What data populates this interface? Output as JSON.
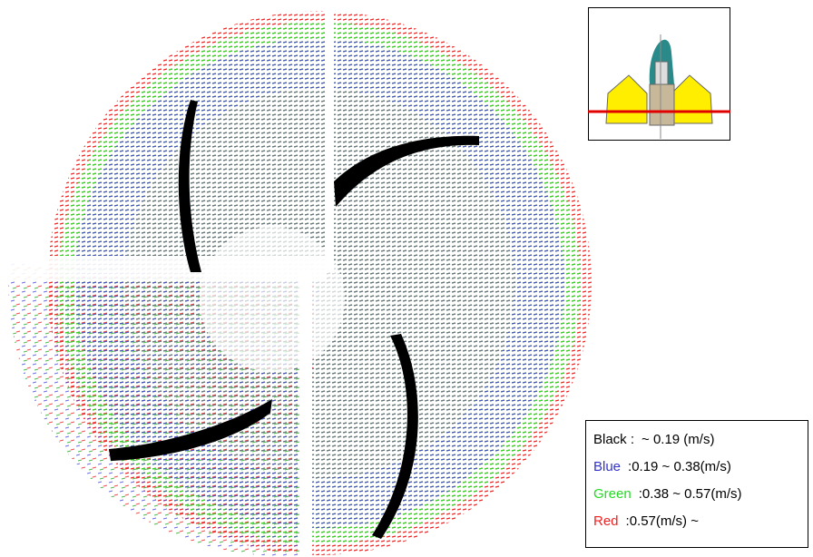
{
  "legend": {
    "items": [
      {
        "name": "Black :",
        "range": "~ 0.19 (m/s)",
        "color": "#000000"
      },
      {
        "name": "Blue",
        "range": ":0.19 ~ 0.38(m/s)",
        "color": "#3333cc"
      },
      {
        "name": "Green",
        "range": ":0.38 ~ 0.57(m/s)",
        "color": "#22dd22"
      },
      {
        "name": "Red",
        "range": ":0.57(m/s) ~",
        "color": "#ee2222"
      }
    ]
  }
}
